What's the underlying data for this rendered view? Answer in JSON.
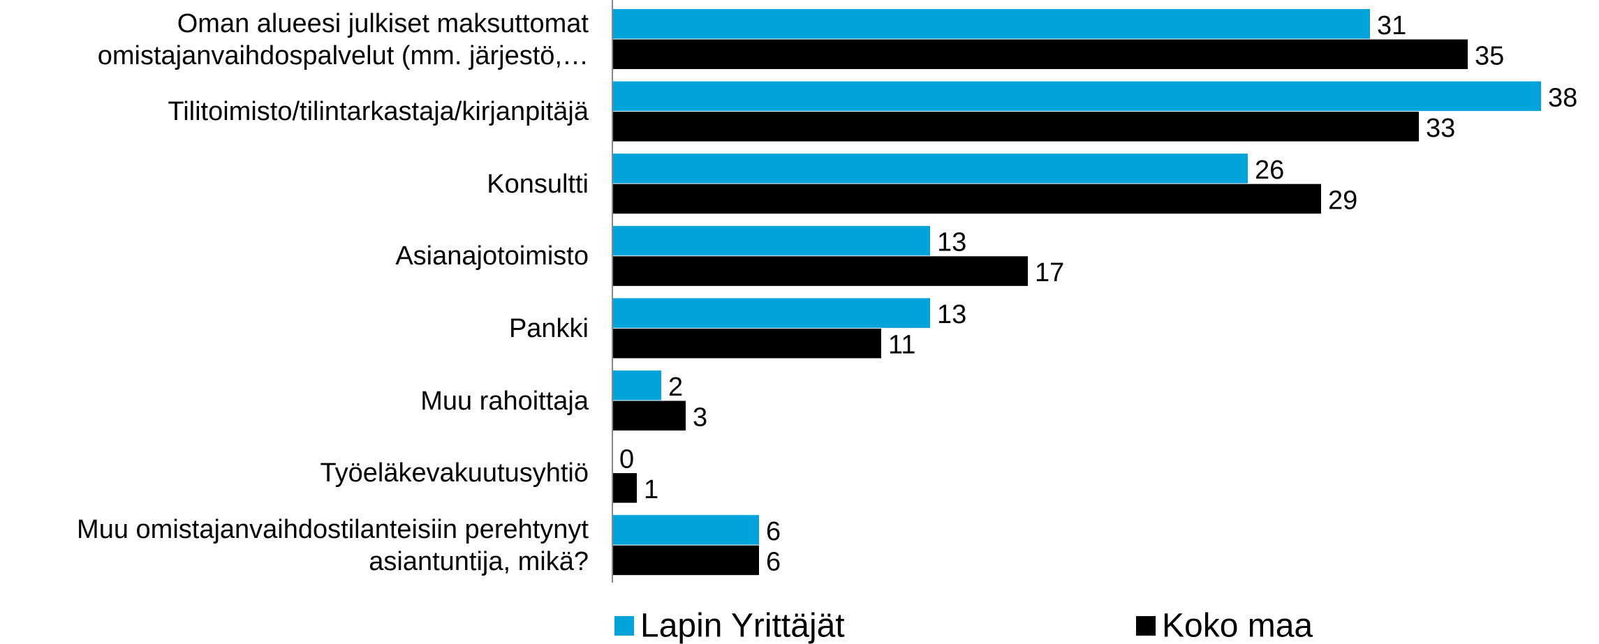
{
  "chart_data": {
    "type": "bar",
    "orientation": "horizontal",
    "categories": [
      "Oman alueesi julkiset maksuttomat\nomistajanvaihdospalvelut (mm. järjestö,…",
      "Tilitoimisto/tilintarkastaja/kirjanpitäjä",
      "Konsultti",
      "Asianajotoimisto",
      "Pankki",
      "Muu rahoittaja",
      "Työeläkevakuutusyhtiö",
      "Muu omistajanvaihdostilanteisiin perehtynyt\nasiantuntija, mikä?"
    ],
    "series": [
      {
        "name": "Lapin Yrittäjät",
        "color": "#00a3da",
        "values": [
          31,
          38,
          26,
          13,
          13,
          2,
          0,
          6
        ]
      },
      {
        "name": "Koko maa",
        "color": "#000000",
        "values": [
          35,
          33,
          29,
          17,
          11,
          3,
          1,
          6
        ]
      }
    ],
    "legend": "bottom"
  }
}
